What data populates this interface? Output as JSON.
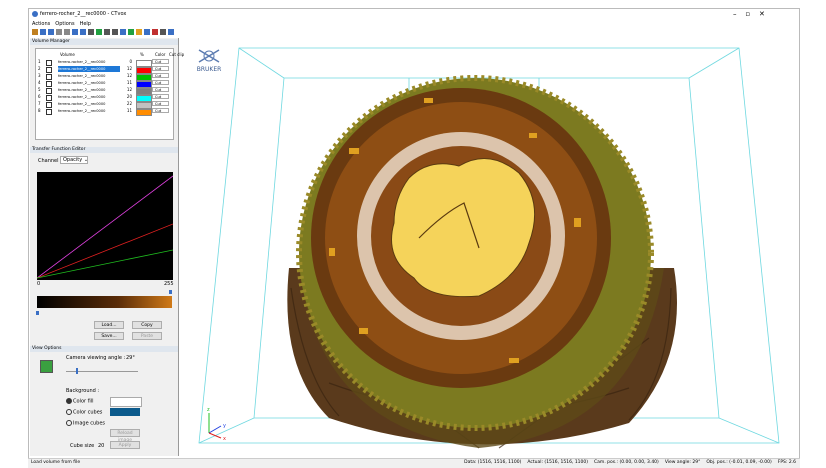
{
  "window": {
    "title": "ferrero-rocher_2__rec0000 - CTvox",
    "menu": [
      "Actions",
      "Options",
      "Help"
    ]
  },
  "volume_manager": {
    "title": "Volume Manager",
    "columns": [
      "Volume",
      "%",
      "Color",
      "Cut clip"
    ],
    "rows": [
      {
        "index": 1,
        "name": "ferrero-rocher_2__rec0000",
        "percent": 0,
        "color": "#ffffff",
        "clip": "Cut"
      },
      {
        "index": 2,
        "name": "ferrero-rocher_2__rec0000",
        "percent": 12,
        "color": "#ff0000",
        "clip": "Cut",
        "selected": true
      },
      {
        "index": 3,
        "name": "ferrero-rocher_2__rec0000",
        "percent": 12,
        "color": "#00c000",
        "clip": "Cut"
      },
      {
        "index": 4,
        "name": "ferrero-rocher_2__rec0000",
        "percent": 11,
        "color": "#0000ff",
        "clip": "Cut"
      },
      {
        "index": 5,
        "name": "ferrero-rocher_2__rec0000",
        "percent": 12,
        "color": "#808080",
        "clip": "Cut"
      },
      {
        "index": 6,
        "name": "ferrero-rocher_2__rec0000",
        "percent": 20,
        "color": "#00ffff",
        "clip": "Cut"
      },
      {
        "index": 7,
        "name": "ferrero-rocher_2__rec0000",
        "percent": 22,
        "color": "#c0c0c0",
        "clip": "Cut"
      },
      {
        "index": 8,
        "name": "ferrero-rocher_2__rec0000",
        "percent": 11,
        "color": "#ff8c00",
        "clip": "Cut"
      }
    ]
  },
  "transfer_function": {
    "title": "Transfer Function Editor",
    "channel_label": "Channel :",
    "channel": "Opacity",
    "axis_min": 0,
    "axis_max": 255,
    "buttons": [
      "Load...",
      "Copy",
      "Save...",
      "Paste"
    ]
  },
  "view_options": {
    "title": "View Options",
    "camera_label": "Camera viewing angle :",
    "camera_angle": "29°",
    "background_label": "Background :",
    "options": [
      "Color fill",
      "Color cubes",
      "Image cubes"
    ],
    "cube_size_label": "Cube size",
    "cube_size": 20,
    "buttons": [
      "Reload image",
      "Apply"
    ]
  },
  "viewport": {
    "logo": "BRUKER",
    "axes": [
      "x",
      "y",
      "z"
    ]
  },
  "status": {
    "message": "Load volume from file",
    "fields": [
      "Data: (1516, 1516, 1100)",
      "Actual: (1516, 1516, 1100)",
      "Cam. pos.: (0.00, 0.00, 3.40)",
      "View angle: 29°",
      "Obj. pos.: (-0.01, 0.09, -0.00)",
      "FPS: 2.6"
    ]
  }
}
